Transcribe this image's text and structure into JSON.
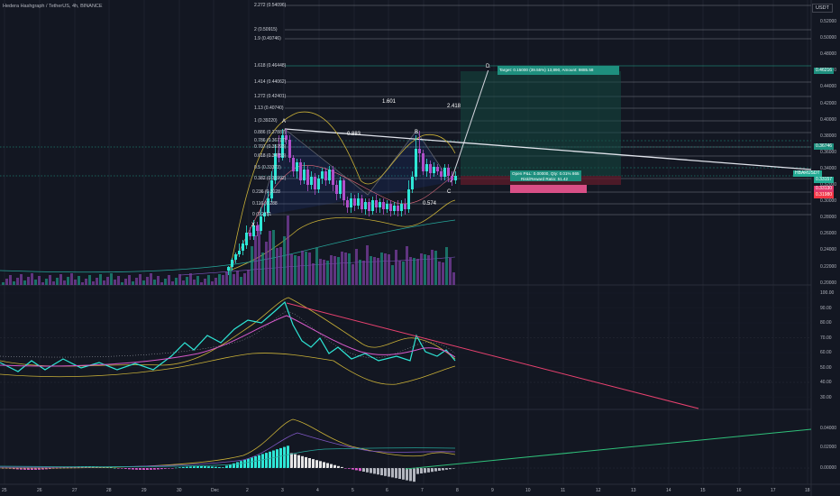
{
  "header": {
    "symbol_title": "Hedera Hashgraph / TetherUS, 4h, BINANCE"
  },
  "currency_badge": "USDT",
  "fib_levels": [
    {
      "label": "2.272 (0.54096)"
    },
    {
      "label": "2 (0.50915)"
    },
    {
      "label": "1.9 (0.49746)"
    },
    {
      "label": "1.618 (0.46448)"
    },
    {
      "label": "1.414 (0.44062)"
    },
    {
      "label": "1.272 (0.42401)"
    },
    {
      "label": "1.13 (0.40740)"
    },
    {
      "label": "1 (0.39220)"
    },
    {
      "label": "0.886 (0.37887)"
    },
    {
      "label": "0.786 (0.36717)"
    },
    {
      "label": "0.707 (0.35793)"
    },
    {
      "label": "0.618 (0.34753)"
    },
    {
      "label": "0.5 (0.33373)"
    },
    {
      "label": "0.382 (0.31992)"
    },
    {
      "label": "0.236 (0.3028"
    },
    {
      "label": "0.116 (0.288"
    },
    {
      "label": "0 (0.2751"
    }
  ],
  "price_axis": [
    "0.52000",
    "0.50000",
    "0.48000",
    "0.46000",
    "0.44000",
    "0.42000",
    "0.40000",
    "0.38000",
    "0.36000",
    "0.34000",
    "0.32000",
    "0.30000",
    "0.28000",
    "0.26000",
    "0.24000",
    "0.22000",
    "0.20000"
  ],
  "price_tags": {
    "target": "0.46216",
    "resistance": "0.36746",
    "symbol": "HBARUSDT",
    "current": "0.33157",
    "stop": "0.33130",
    "low": "0.31980"
  },
  "rsi_axis": [
    "100.00",
    "90.00",
    "80.00",
    "70.00",
    "60.00",
    "50.00",
    "40.00",
    "30.00"
  ],
  "macd_axis": [
    "0.04000",
    "0.02000",
    "0.00000"
  ],
  "time_axis": [
    "25",
    "26",
    "27",
    "28",
    "29",
    "30",
    "Dec",
    "2",
    "3",
    "4",
    "5",
    "6",
    "7",
    "8",
    "9",
    "10",
    "11",
    "12",
    "13",
    "14",
    "15",
    "16",
    "17",
    "18"
  ],
  "pattern_labels": {
    "X": "X",
    "A": "A",
    "B": "B",
    "C": "C",
    "D": "D",
    "ab": "0.883",
    "bc": "0.574",
    "xd": "1.601",
    "cd": "2.418"
  },
  "position": {
    "target_text": "Target: 0.15000 (39.55%) 13,890, Amount: 9885.58",
    "open_text": "Open P&L: 0.00000, Qty: 0.01% 865",
    "risk_text": "Risk/Reward Ratio: 51.42"
  }
}
